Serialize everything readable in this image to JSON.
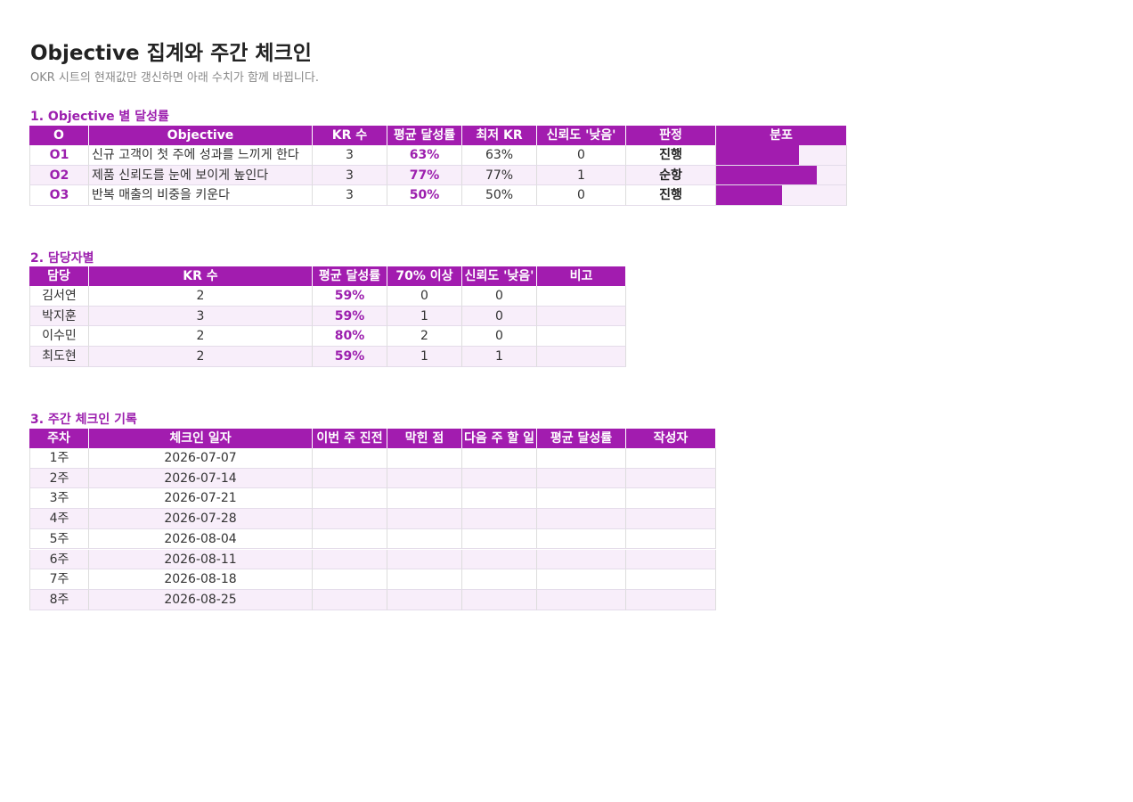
{
  "header": {
    "title": "Objective 집계와 주간 체크인",
    "subtitle": "OKR 시트의 현재값만 갱신하면 아래 수치가 함께 바뀝니다."
  },
  "objectives": {
    "heading": "1. Objective 별 달성률",
    "columns": [
      "O",
      "Objective",
      "KR 수",
      "평균 달성률",
      "최저 KR",
      "신뢰도 '낮음'",
      "판정",
      "분포"
    ],
    "rows": [
      {
        "id": "O1",
        "objective": "신규 고객이 첫 주에 성과를 느끼게 한다",
        "kr_count": "3",
        "avg_rate": {
          "value": 63,
          "label": "63%"
        },
        "min_kr": "63%",
        "low_confidence": "0",
        "verdict": "진행"
      },
      {
        "id": "O2",
        "objective": "제품 신뢰도를 눈에 보이게 높인다",
        "kr_count": "3",
        "avg_rate": {
          "value": 77,
          "label": "77%"
        },
        "min_kr": "77%",
        "low_confidence": "1",
        "verdict": "순항"
      },
      {
        "id": "O3",
        "objective": "반복 매출의 비중을 키운다",
        "kr_count": "3",
        "avg_rate": {
          "value": 50,
          "label": "50%"
        },
        "min_kr": "50%",
        "low_confidence": "0",
        "verdict": "진행"
      }
    ]
  },
  "owners": {
    "heading": "2. 담당자별",
    "columns": [
      "담당",
      "KR 수",
      "평균 달성률",
      "70% 이상",
      "신뢰도 '낮음'",
      "비고"
    ],
    "rows": [
      {
        "owner": "김서연",
        "kr_count": "2",
        "avg_rate": "59%",
        "over_70": "0",
        "low_confidence": "0"
      },
      {
        "owner": "박지훈",
        "kr_count": "3",
        "avg_rate": "59%",
        "over_70": "1",
        "low_confidence": "0"
      },
      {
        "owner": "이수민",
        "kr_count": "2",
        "avg_rate": "80%",
        "over_70": "2",
        "low_confidence": "0"
      },
      {
        "owner": "최도현",
        "kr_count": "2",
        "avg_rate": "59%",
        "over_70": "1",
        "low_confidence": "1"
      }
    ]
  },
  "checkins": {
    "heading": "3. 주간 체크인 기록",
    "columns": [
      "주차",
      "체크인 일자",
      "이번 주 진전",
      "막힌 점",
      "다음 주 할 일",
      "평균 달성률",
      "작성자"
    ],
    "rows": [
      {
        "week": "1주",
        "date": "2026-07-07"
      },
      {
        "week": "2주",
        "date": "2026-07-14"
      },
      {
        "week": "3주",
        "date": "2026-07-21"
      },
      {
        "week": "4주",
        "date": "2026-07-28"
      },
      {
        "week": "5주",
        "date": "2026-08-04"
      },
      {
        "week": "6주",
        "date": "2026-08-11"
      },
      {
        "week": "7주",
        "date": "2026-08-18"
      },
      {
        "week": "8주",
        "date": "2026-08-25"
      }
    ]
  }
}
